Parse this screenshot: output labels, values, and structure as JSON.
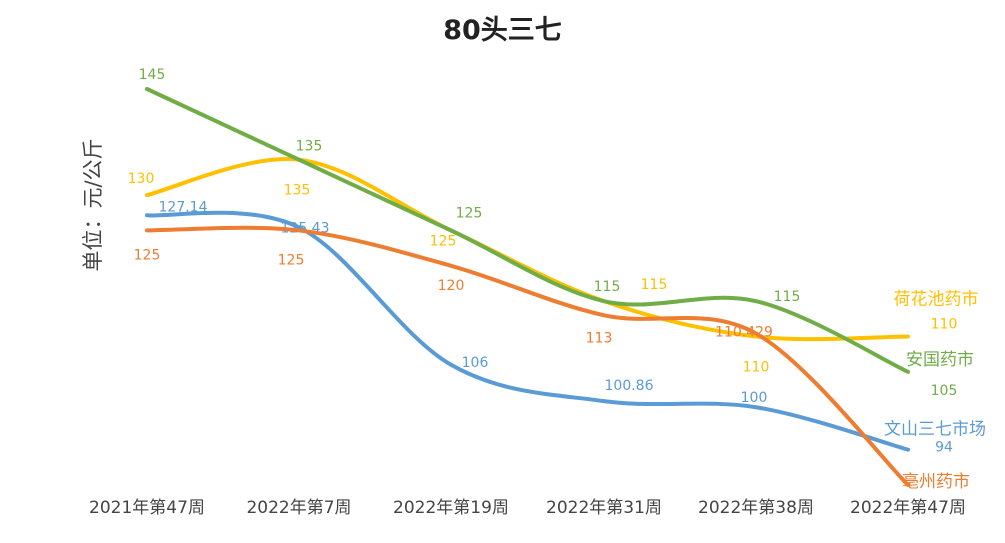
{
  "chart_data": {
    "type": "line",
    "title": "80头三七",
    "ylabel": "单位：元/公斤",
    "xlabel": "",
    "categories": [
      "2021年第47周",
      "2022年第7周",
      "2022年第19周",
      "2022年第31周",
      "2022年第38周",
      "2022年第47周"
    ],
    "ylim": [
      88,
      150
    ],
    "grid": false,
    "legend": "labels at line ends (right)",
    "series": [
      {
        "name": "荷花池药市",
        "color": "#FFC000",
        "values": [
          130,
          135,
          125,
          115,
          110,
          110
        ],
        "labels": [
          "130",
          "135",
          "125",
          "115",
          "110",
          "110"
        ]
      },
      {
        "name": "安国药市",
        "color": "#70AD47",
        "values": [
          145,
          135,
          125,
          115,
          115,
          105
        ],
        "labels": [
          "145",
          "135",
          "125",
          "115",
          "115",
          "105"
        ]
      },
      {
        "name": "文山三七市场",
        "color": "#5B9BD5",
        "values": [
          127.14,
          125.43,
          106,
          100.86,
          100,
          94
        ],
        "labels": [
          "127.14",
          "125.43",
          "106",
          "100.86",
          "100",
          "94"
        ]
      },
      {
        "name": "亳州药市",
        "color": "#ED7D31",
        "values": [
          125,
          125,
          120,
          113,
          110.429,
          89
        ],
        "labels": [
          "125",
          "125",
          "120",
          "113",
          "110.429",
          ""
        ]
      }
    ]
  }
}
